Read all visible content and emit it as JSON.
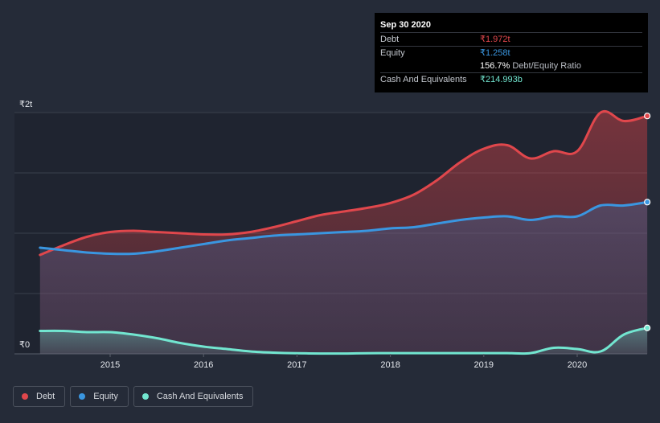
{
  "colors": {
    "debt": "#e0474c",
    "equity": "#3a96e0",
    "cash": "#72e6d0",
    "background": "#252b38"
  },
  "tooltip": {
    "date": "Sep 30 2020",
    "debt_label": "Debt",
    "debt_value": "₹1.972t",
    "equity_label": "Equity",
    "equity_value": "₹1.258t",
    "ratio_value": "156.7%",
    "ratio_label": "Debt/Equity Ratio",
    "cash_label": "Cash And Equivalents",
    "cash_value": "₹214.993b"
  },
  "legend": [
    {
      "label": "Debt",
      "color": "#e0474c"
    },
    {
      "label": "Equity",
      "color": "#3a96e0"
    },
    {
      "label": "Cash And Equivalents",
      "color": "#72e6d0"
    }
  ],
  "chart_data": {
    "type": "area",
    "title": "",
    "xlabel": "",
    "ylabel": "",
    "y_unit": "₹ trillion",
    "ylim": [
      0,
      2
    ],
    "y_tick_labels": [
      "₹2t",
      "₹0"
    ],
    "x_ticks": [
      2015,
      2016,
      2017,
      2018,
      2019,
      2020
    ],
    "x_tick_labels": [
      "2015",
      "2016",
      "2017",
      "2018",
      "2019",
      "2020"
    ],
    "grid": true,
    "legend_position": "bottom-left",
    "x": [
      2014.25,
      2014.5,
      2014.75,
      2015.0,
      2015.25,
      2015.5,
      2015.75,
      2016.0,
      2016.25,
      2016.5,
      2016.75,
      2017.0,
      2017.25,
      2017.5,
      2017.75,
      2018.0,
      2018.25,
      2018.5,
      2018.75,
      2019.0,
      2019.25,
      2019.5,
      2019.75,
      2020.0,
      2020.25,
      2020.5,
      2020.75
    ],
    "series": [
      {
        "name": "Debt",
        "values": [
          0.82,
          0.9,
          0.97,
          1.01,
          1.02,
          1.01,
          1.0,
          0.99,
          0.99,
          1.01,
          1.05,
          1.1,
          1.15,
          1.18,
          1.21,
          1.25,
          1.32,
          1.44,
          1.59,
          1.7,
          1.73,
          1.62,
          1.68,
          1.68,
          2.0,
          1.93,
          1.972
        ]
      },
      {
        "name": "Equity",
        "values": [
          0.88,
          0.86,
          0.84,
          0.83,
          0.83,
          0.85,
          0.88,
          0.91,
          0.94,
          0.96,
          0.98,
          0.99,
          1.0,
          1.01,
          1.02,
          1.04,
          1.05,
          1.08,
          1.11,
          1.13,
          1.14,
          1.11,
          1.14,
          1.14,
          1.23,
          1.23,
          1.258
        ]
      },
      {
        "name": "Cash And Equivalents",
        "values": [
          0.19,
          0.19,
          0.18,
          0.18,
          0.16,
          0.13,
          0.09,
          0.06,
          0.04,
          0.02,
          0.01,
          0.005,
          0.003,
          0.003,
          0.005,
          0.006,
          0.006,
          0.006,
          0.006,
          0.006,
          0.006,
          0.006,
          0.05,
          0.04,
          0.02,
          0.16,
          0.215
        ]
      }
    ]
  }
}
